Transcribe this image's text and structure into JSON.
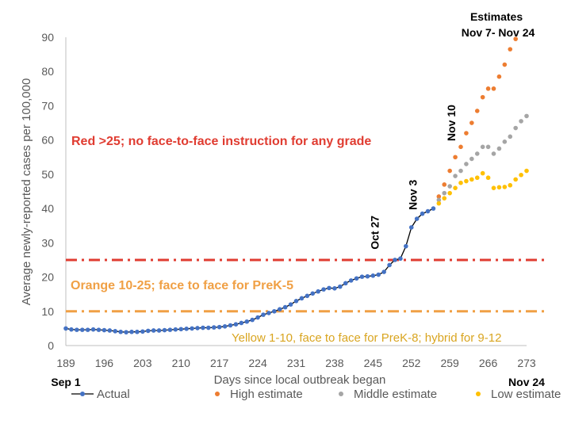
{
  "chart_data": {
    "type": "scatter",
    "ylabel": "Average newly-reported cases per 100,000",
    "xlabel": "Days since local outbreak began",
    "xlim": [
      189,
      273
    ],
    "ylim": [
      0,
      90
    ],
    "x_ticks": [
      "189",
      "196",
      "203",
      "210",
      "217",
      "224",
      "231",
      "238",
      "245",
      "252",
      "259",
      "266",
      "273"
    ],
    "y_ticks": [
      "0",
      "10",
      "20",
      "30",
      "40",
      "50",
      "60",
      "70",
      "80",
      "90"
    ],
    "x_start_label": "Sep 1",
    "x_end_label": "Nov 24",
    "title": "Estimates\nNov 7- Nov 24",
    "grid": false,
    "legend_position": "bottom",
    "thresholds": [
      {
        "value": 25,
        "color": "#e03c31",
        "label": "Red >25; no face-to-face instruction for any grade"
      },
      {
        "value": 10,
        "color": "#f0a045",
        "label": "Orange 10-25; face to face for PreK-5"
      }
    ],
    "yellow_note": "Yellow 1-10, face to face for PreK-8; hybrid for 9-12",
    "annotations": [
      {
        "text": "Oct 27",
        "x": 246,
        "y": 33
      },
      {
        "text": "Nov 3",
        "x": 253,
        "y": 44
      },
      {
        "text": "Nov 10",
        "x": 260,
        "y": 65
      }
    ],
    "series": [
      {
        "name": "Actual",
        "color": "#4472c4",
        "x": [
          189,
          190,
          191,
          192,
          193,
          194,
          195,
          196,
          197,
          198,
          199,
          200,
          201,
          202,
          203,
          204,
          205,
          206,
          207,
          208,
          209,
          210,
          211,
          212,
          213,
          214,
          215,
          216,
          217,
          218,
          219,
          220,
          221,
          222,
          223,
          224,
          225,
          226,
          227,
          228,
          229,
          230,
          231,
          232,
          233,
          234,
          235,
          236,
          237,
          238,
          239,
          240,
          241,
          242,
          243,
          244,
          245,
          246,
          247,
          248,
          249,
          250,
          251,
          252,
          253,
          254,
          255,
          256
        ],
        "values": [
          5.0,
          4.7,
          4.6,
          4.6,
          4.6,
          4.7,
          4.6,
          4.5,
          4.4,
          4.2,
          4.0,
          3.9,
          4.0,
          4.0,
          4.1,
          4.3,
          4.4,
          4.4,
          4.5,
          4.6,
          4.7,
          4.8,
          4.9,
          5.0,
          5.1,
          5.2,
          5.2,
          5.3,
          5.4,
          5.6,
          5.9,
          6.2,
          6.6,
          7.0,
          7.5,
          8.2,
          9.0,
          9.5,
          10.0,
          10.6,
          11.2,
          12.0,
          13.0,
          13.8,
          14.5,
          15.2,
          15.8,
          16.4,
          16.8,
          16.7,
          17.2,
          18.2,
          19.0,
          19.6,
          20.1,
          20.2,
          20.4,
          20.7,
          21.5,
          23.5,
          25.0,
          25.4,
          29.0,
          34.5,
          37.0,
          38.5,
          39.2,
          40.0
        ]
      },
      {
        "name": "High estimate",
        "color": "#ed7d31",
        "x": [
          257,
          258,
          259,
          260,
          261,
          262,
          263,
          264,
          265,
          266,
          267,
          268,
          269,
          270,
          271
        ],
        "values": [
          43.5,
          47.0,
          51.0,
          55.0,
          58.0,
          62.0,
          65.0,
          68.5,
          72.5,
          75.0,
          75.0,
          78.5,
          82.0,
          86.5,
          89.5
        ]
      },
      {
        "name": "Middle estimate",
        "color": "#a5a5a5",
        "x": [
          257,
          258,
          259,
          260,
          261,
          262,
          263,
          264,
          265,
          266,
          267,
          268,
          269,
          270,
          271,
          272,
          273
        ],
        "values": [
          42.5,
          44.5,
          46.5,
          49.5,
          51.0,
          53.0,
          54.5,
          56.0,
          58.0,
          58.0,
          56.0,
          57.5,
          59.5,
          61.0,
          63.5,
          65.5,
          67.0
        ]
      },
      {
        "name": "Low estimate",
        "color": "#ffc000",
        "x": [
          257,
          258,
          259,
          260,
          261,
          262,
          263,
          264,
          265,
          266,
          267,
          268,
          269,
          270,
          271,
          272,
          273
        ],
        "values": [
          41.5,
          43.0,
          44.5,
          46.0,
          47.5,
          48.0,
          48.5,
          49.0,
          50.3,
          49.0,
          46.0,
          46.2,
          46.3,
          46.8,
          48.5,
          49.8,
          51.0
        ]
      }
    ]
  }
}
